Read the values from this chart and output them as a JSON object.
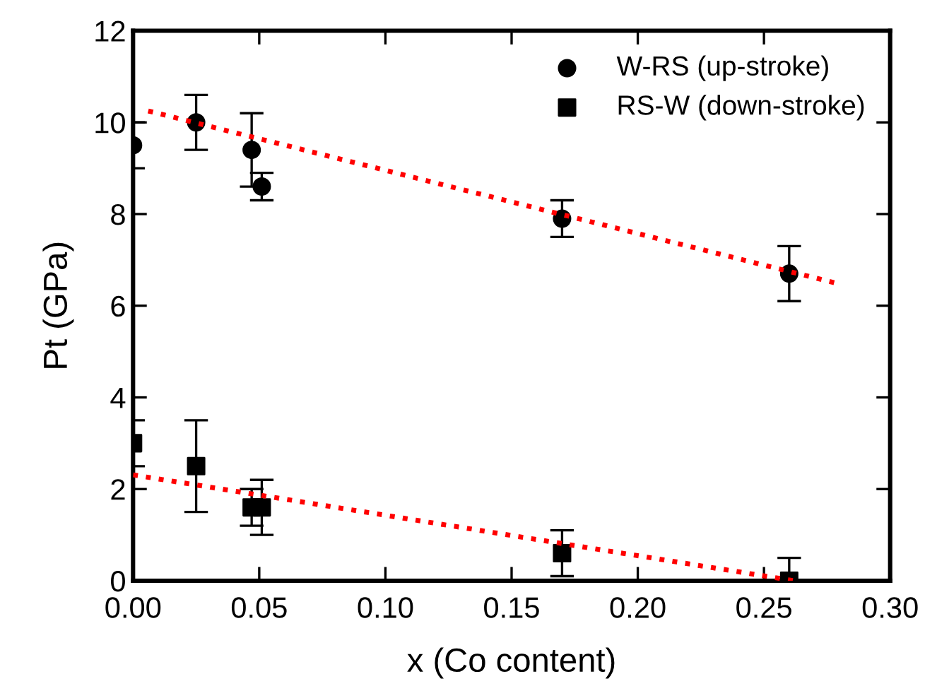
{
  "chart_data": {
    "type": "scatter",
    "xlabel": "x (Co content)",
    "ylabel": "Pt (GPa)",
    "xlim": [
      0,
      0.3
    ],
    "xticks": [
      {
        "value": 0,
        "label": "0.00"
      },
      {
        "value": 0.05,
        "label": "0.05"
      },
      {
        "value": 0.1,
        "label": "0.10"
      },
      {
        "value": 0.15,
        "label": "0.15"
      },
      {
        "value": 0.2,
        "label": "0.20"
      },
      {
        "value": 0.25,
        "label": "0.25"
      },
      {
        "value": 0.3,
        "label": "0.30"
      }
    ],
    "ylim": [
      0,
      12
    ],
    "yticks": [
      0,
      2,
      4,
      6,
      8,
      10,
      12
    ],
    "grid": false,
    "legend": "top right",
    "series": [
      {
        "name": "W-RS (up-stroke)",
        "color": "#000000",
        "marker": "circle",
        "x": [
          0,
          0.025,
          0.047,
          0.051,
          0.17,
          0.26
        ],
        "values": [
          9.5,
          10.0,
          9.4,
          8.6,
          7.9,
          6.7
        ],
        "errors": [
          0.5,
          0.6,
          0.8,
          0.3,
          0.4,
          0.6
        ]
      },
      {
        "name": "RS-W (down-stroke)",
        "color": "#000000",
        "marker": "square",
        "x": [
          0,
          0.025,
          0.047,
          0.051,
          0.17,
          0.26
        ],
        "values": [
          3.0,
          2.5,
          1.6,
          1.6,
          0.6,
          0.0
        ],
        "errors": [
          0.5,
          1.0,
          0.4,
          0.6,
          0.5,
          [
            0.0,
            0.5
          ]
        ]
      },
      {
        "type": "line",
        "color": "#ff0000",
        "marker": "none",
        "line_style": "dotted",
        "x": [
          0.006,
          0.278
        ],
        "values": [
          10.25,
          6.5
        ]
      },
      {
        "type": "line",
        "color": "#ff0000",
        "marker": "none",
        "line_style": "dotted",
        "x": [
          0,
          0.262
        ],
        "values": [
          2.31,
          0.0
        ]
      }
    ]
  }
}
